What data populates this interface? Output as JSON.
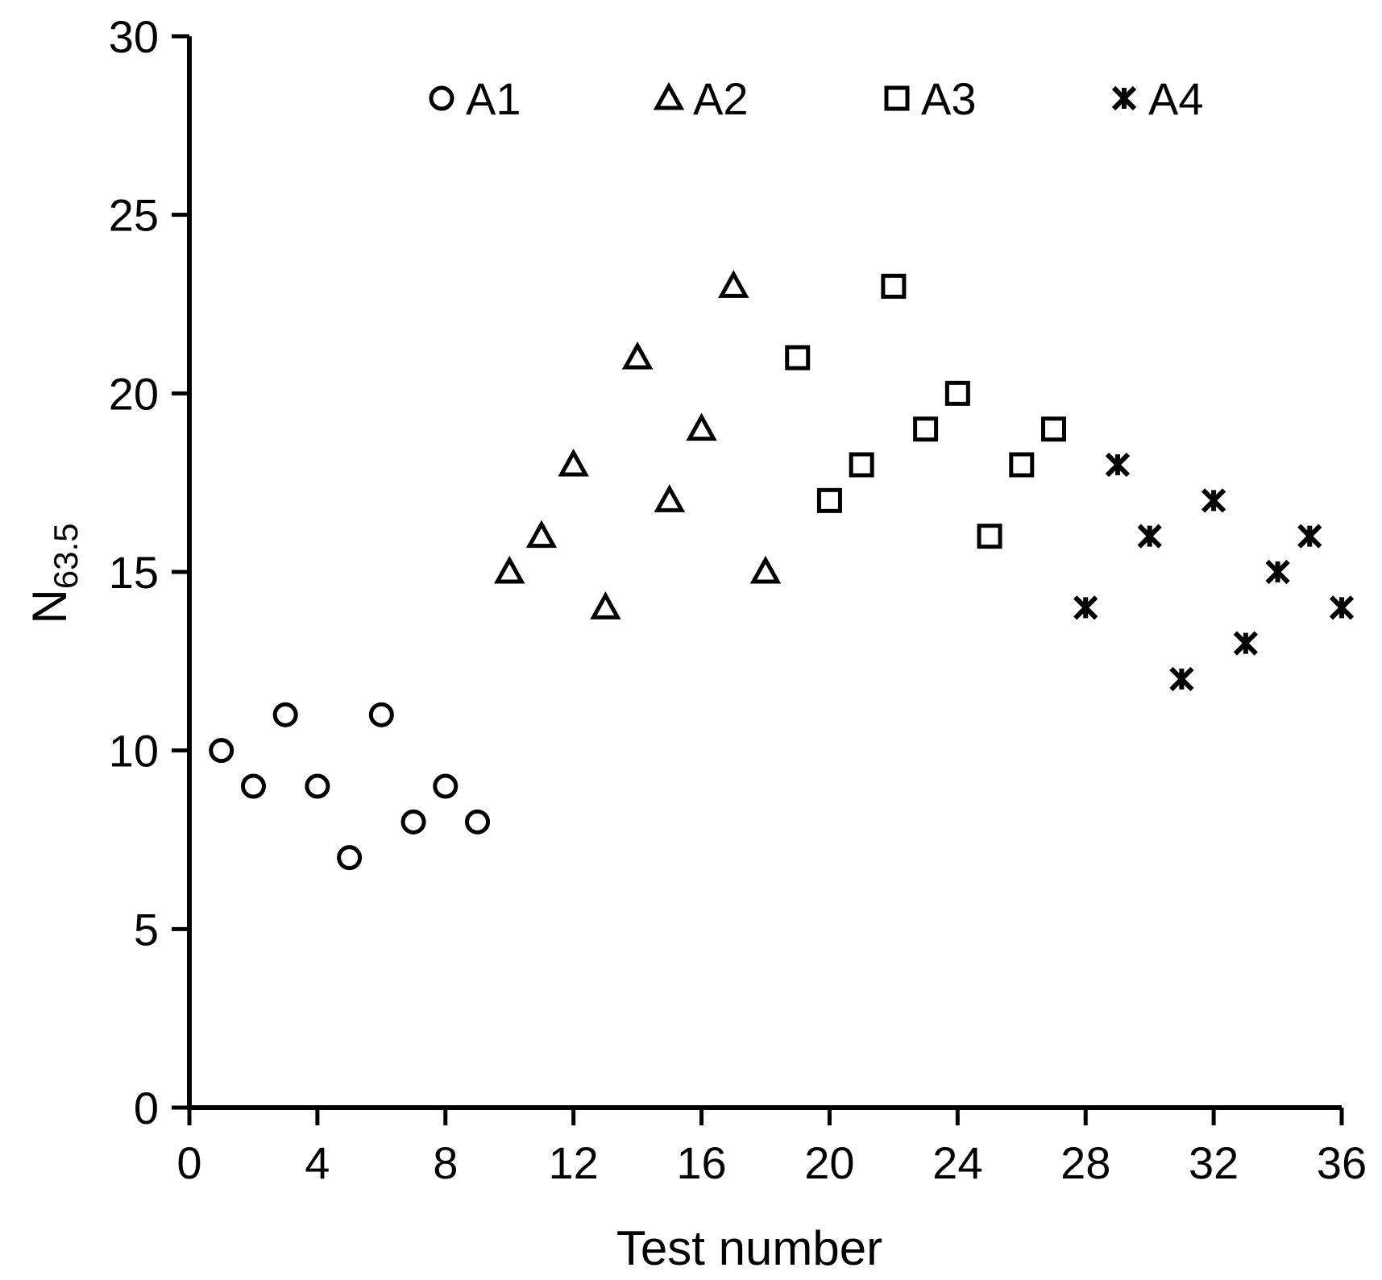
{
  "chart_data": {
    "type": "scatter",
    "xlabel": "Test number",
    "ylabel": {
      "main": "N",
      "subscript": "63.5"
    },
    "xlim": [
      0,
      36
    ],
    "ylim": [
      0,
      30
    ],
    "xticks": [
      "0",
      "4",
      "8",
      "12",
      "16",
      "20",
      "24",
      "28",
      "32",
      "36"
    ],
    "yticks": [
      "0",
      "5",
      "10",
      "15",
      "20",
      "25",
      "30"
    ],
    "grid": false,
    "legend_position": "top",
    "series": [
      {
        "name": "A1",
        "marker": "circle",
        "x": [
          1,
          2,
          3,
          4,
          5,
          6,
          7,
          8,
          9
        ],
        "y": [
          10,
          9,
          11,
          9,
          7,
          11,
          8,
          9,
          8
        ]
      },
      {
        "name": "A2",
        "marker": "triangle",
        "x": [
          10,
          11,
          12,
          13,
          14,
          15,
          16,
          17,
          18
        ],
        "y": [
          15,
          16,
          18,
          14,
          21,
          17,
          19,
          23,
          15
        ]
      },
      {
        "name": "A3",
        "marker": "square",
        "x": [
          19,
          20,
          21,
          22,
          23,
          24,
          25,
          26,
          27
        ],
        "y": [
          21,
          17,
          18,
          23,
          19,
          20,
          16,
          18,
          19
        ]
      },
      {
        "name": "A4",
        "marker": "asterisk",
        "x": [
          28,
          29,
          30,
          31,
          32,
          33,
          34,
          35,
          36
        ],
        "y": [
          14,
          18,
          16,
          12,
          17,
          13,
          15,
          16,
          14
        ]
      }
    ]
  }
}
